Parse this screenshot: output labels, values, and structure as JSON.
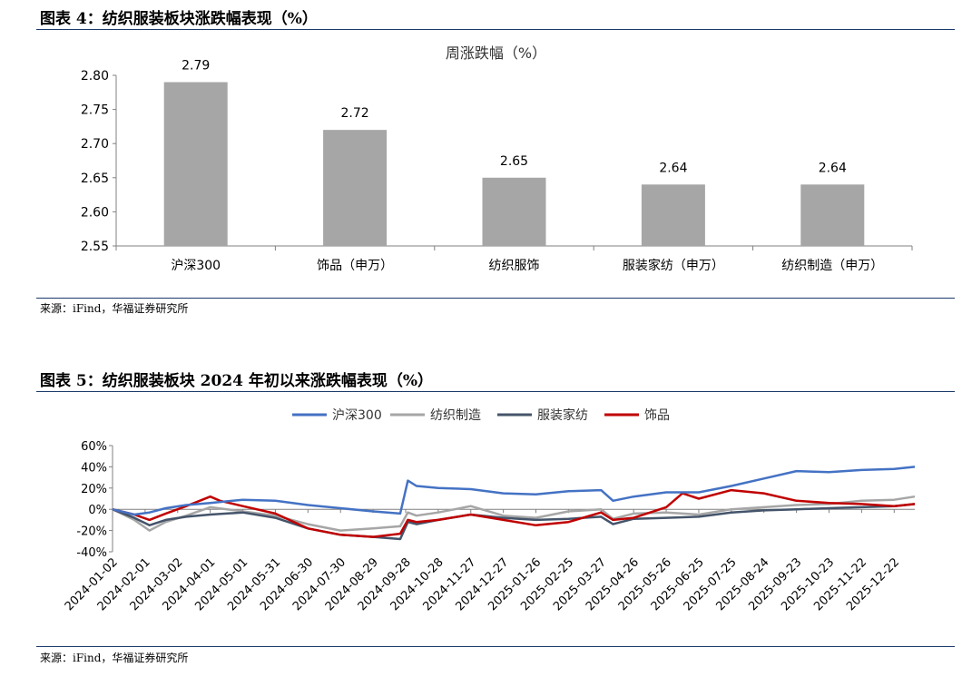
{
  "figure4": {
    "title": "图表 4：纺织服装板块涨跌幅表现（%）",
    "source": "来源：iFind，华福证券研究所"
  },
  "figure5": {
    "title": "图表 5：纺织服装板块 2024 年初以来涨跌幅表现（%）",
    "source": "来源：iFind，华福证券研究所"
  },
  "chart_data": [
    {
      "type": "bar",
      "title": "周涨跌幅（%）",
      "categories": [
        "沪深300",
        "饰品（申万）",
        "纺织服饰",
        "服装家纺（申万）",
        "纺织制造（申万）"
      ],
      "values": [
        2.79,
        2.72,
        2.65,
        2.64,
        2.64
      ],
      "data_labels": [
        "2.79",
        "2.72",
        "2.65",
        "2.64",
        "2.64"
      ],
      "ylim": [
        2.55,
        2.8
      ],
      "yticks": [
        "2.55",
        "2.60",
        "2.65",
        "2.70",
        "2.75",
        "2.80"
      ],
      "grid": false,
      "color": "#a6a6a6"
    },
    {
      "type": "line",
      "x_ticks": [
        "2024-01-02",
        "2024-02-01",
        "2024-03-02",
        "2024-04-01",
        "2024-05-01",
        "2024-05-31",
        "2024-06-30",
        "2024-07-30",
        "2024-08-29",
        "2024-09-28",
        "2024-10-28",
        "2024-11-27",
        "2024-12-27",
        "2025-01-26",
        "2025-02-25",
        "2025-03-27",
        "2025-04-26",
        "2025-05-26",
        "2025-06-25",
        "2025-07-25",
        "2025-08-24",
        "2025-09-23",
        "2025-10-23",
        "2025-11-22",
        "2025-12-22"
      ],
      "y_ticks": [
        "-40%",
        "-20%",
        "0%",
        "20%",
        "40%",
        "60%"
      ],
      "ylim": [
        -40,
        60
      ],
      "legend_position": "top",
      "series": [
        {
          "name": "沪深300",
          "color": "#4472c4",
          "x": [
            "2024-01-02",
            "2024-01-22",
            "2024-02-05",
            "2024-02-20",
            "2024-03-10",
            "2024-04-01",
            "2024-05-01",
            "2024-05-31",
            "2024-06-30",
            "2024-07-30",
            "2024-08-29",
            "2024-09-23",
            "2024-09-30",
            "2024-10-08",
            "2024-10-28",
            "2024-11-27",
            "2024-12-27",
            "2025-01-26",
            "2025-02-25",
            "2025-03-27",
            "2025-04-07",
            "2025-04-26",
            "2025-05-26",
            "2025-06-25",
            "2025-07-25",
            "2025-08-24",
            "2025-09-23",
            "2025-10-23",
            "2025-11-22",
            "2025-12-22",
            "2026-01-10"
          ],
          "y": [
            0,
            -5,
            -3,
            1,
            4,
            6,
            9,
            8,
            4,
            1,
            -2,
            -4,
            27,
            22,
            20,
            19,
            15,
            14,
            17,
            18,
            8,
            12,
            16,
            16,
            22,
            29,
            36,
            35,
            37,
            38,
            40
          ]
        },
        {
          "name": "纺织制造",
          "color": "#a6a6a6",
          "x": [
            "2024-01-02",
            "2024-01-22",
            "2024-02-05",
            "2024-02-20",
            "2024-03-10",
            "2024-04-01",
            "2024-05-01",
            "2024-05-31",
            "2024-06-30",
            "2024-07-30",
            "2024-08-29",
            "2024-09-23",
            "2024-09-30",
            "2024-10-08",
            "2024-10-28",
            "2024-11-27",
            "2024-12-27",
            "2025-01-26",
            "2025-02-25",
            "2025-03-27",
            "2025-04-07",
            "2025-04-26",
            "2025-05-26",
            "2025-06-25",
            "2025-07-25",
            "2025-08-24",
            "2025-09-23",
            "2025-10-23",
            "2025-11-22",
            "2025-12-22",
            "2026-01-10"
          ],
          "y": [
            0,
            -10,
            -20,
            -12,
            -6,
            2,
            -2,
            -6,
            -14,
            -20,
            -18,
            -16,
            -3,
            -6,
            -3,
            3,
            -6,
            -8,
            -2,
            0,
            -9,
            -4,
            -3,
            -5,
            0,
            2,
            4,
            5,
            8,
            9,
            12
          ]
        },
        {
          "name": "服装家纺",
          "color": "#44546a",
          "x": [
            "2024-01-02",
            "2024-01-22",
            "2024-02-05",
            "2024-02-20",
            "2024-03-10",
            "2024-04-01",
            "2024-05-01",
            "2024-05-31",
            "2024-06-30",
            "2024-07-30",
            "2024-08-29",
            "2024-09-23",
            "2024-09-30",
            "2024-10-08",
            "2024-10-28",
            "2024-11-27",
            "2024-12-27",
            "2025-01-26",
            "2025-02-25",
            "2025-03-27",
            "2025-04-07",
            "2025-04-26",
            "2025-05-26",
            "2025-06-25",
            "2025-07-25",
            "2025-08-24",
            "2025-09-23",
            "2025-10-23",
            "2025-11-22",
            "2025-12-22",
            "2026-01-10"
          ],
          "y": [
            0,
            -8,
            -15,
            -10,
            -7,
            -5,
            -3,
            -8,
            -18,
            -24,
            -26,
            -28,
            -12,
            -14,
            -10,
            -5,
            -8,
            -10,
            -9,
            -7,
            -14,
            -9,
            -8,
            -7,
            -3,
            -1,
            0,
            1,
            2,
            3,
            5
          ]
        },
        {
          "name": "饰品",
          "color": "#c00000",
          "x": [
            "2024-01-02",
            "2024-01-22",
            "2024-02-05",
            "2024-02-20",
            "2024-03-10",
            "2024-04-01",
            "2024-04-10",
            "2024-05-01",
            "2024-05-31",
            "2024-06-30",
            "2024-07-30",
            "2024-08-29",
            "2024-09-23",
            "2024-09-30",
            "2024-10-08",
            "2024-10-28",
            "2024-11-27",
            "2024-12-27",
            "2025-01-26",
            "2025-02-25",
            "2025-03-27",
            "2025-04-07",
            "2025-04-26",
            "2025-05-26",
            "2025-06-10",
            "2025-06-25",
            "2025-07-25",
            "2025-08-24",
            "2025-09-23",
            "2025-10-23",
            "2025-11-22",
            "2025-12-22",
            "2026-01-10"
          ],
          "y": [
            0,
            -5,
            -10,
            -4,
            3,
            12,
            8,
            3,
            -4,
            -18,
            -24,
            -26,
            -23,
            -10,
            -12,
            -10,
            -5,
            -10,
            -15,
            -12,
            -3,
            -10,
            -8,
            2,
            15,
            10,
            18,
            15,
            8,
            6,
            5,
            3,
            5
          ]
        }
      ]
    }
  ]
}
